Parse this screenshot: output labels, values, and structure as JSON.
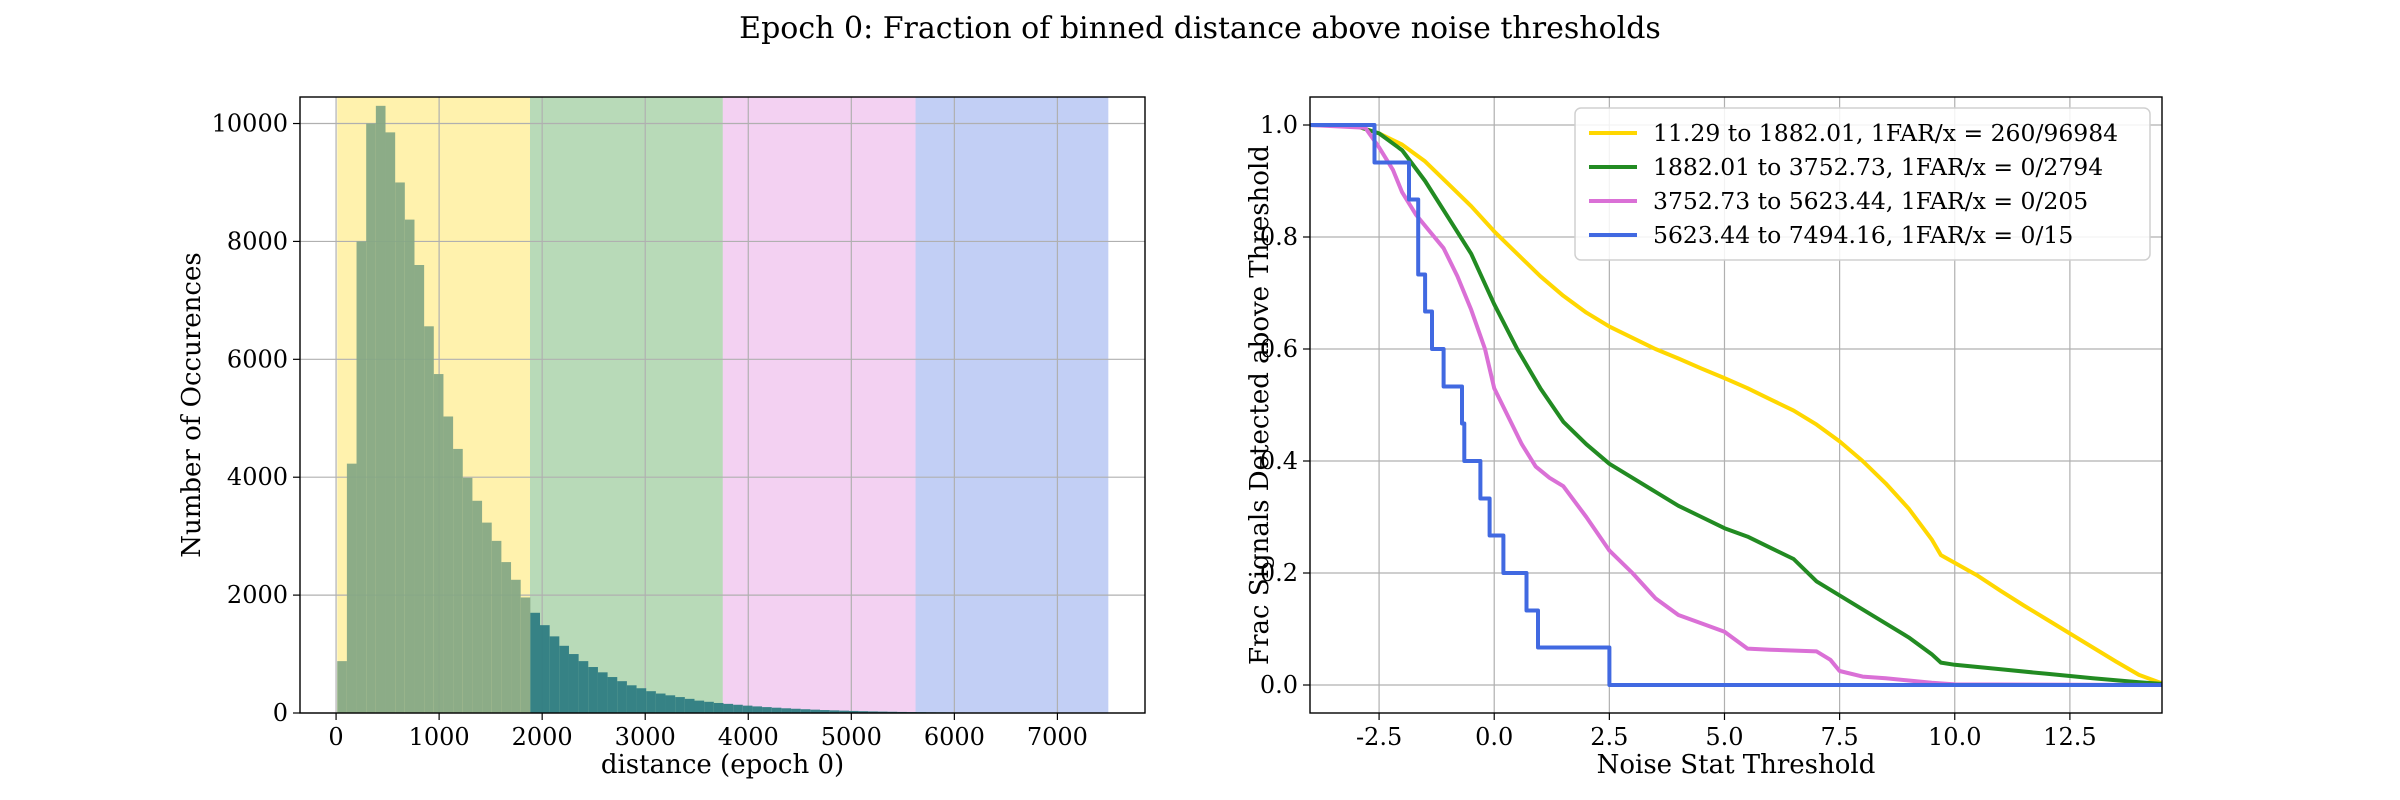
{
  "figure": {
    "title": "Epoch 0: Fraction of binned distance above noise thresholds"
  },
  "colors": {
    "bin1": "#ffd700",
    "bin2": "#228b22",
    "bin3": "#da70d6",
    "bin4": "#4169e1",
    "hist_overlap": "#86a885",
    "hist_tail": "#2e7d82"
  },
  "chart_data": [
    {
      "type": "bar",
      "subtype": "histogram",
      "title": "",
      "xlabel": "distance (epoch 0)",
      "ylabel": "Number of Occurences",
      "xlim": [
        -350,
        7850
      ],
      "ylim": [
        0,
        10450
      ],
      "xticks": [
        0,
        1000,
        2000,
        3000,
        4000,
        5000,
        6000,
        7000
      ],
      "yticks": [
        0,
        2000,
        4000,
        6000,
        8000,
        10000
      ],
      "grid": true,
      "bin_width": 93.7,
      "bin_start": 11.29,
      "values": [
        880,
        4230,
        8000,
        10000,
        10300,
        9850,
        9000,
        8370,
        7600,
        6560,
        5750,
        5030,
        4480,
        3990,
        3600,
        3230,
        2920,
        2560,
        2260,
        1960,
        1700,
        1490,
        1300,
        1140,
        1000,
        880,
        780,
        690,
        610,
        540,
        470,
        420,
        370,
        330,
        300,
        270,
        240,
        210,
        190,
        170,
        155,
        140,
        125,
        112,
        100,
        90,
        80,
        72,
        64,
        57,
        50,
        45,
        40,
        35,
        31,
        27,
        24,
        21,
        18,
        16,
        14,
        12,
        11,
        10,
        9,
        8,
        7,
        6,
        5,
        5,
        4,
        4,
        3,
        3,
        3,
        2,
        2,
        2,
        2,
        1
      ],
      "regions": [
        {
          "from": 11.29,
          "to": 1882.01,
          "color": "#ffd700"
        },
        {
          "from": 1882.01,
          "to": 3752.73,
          "color": "#228b22"
        },
        {
          "from": 3752.73,
          "to": 5623.44,
          "color": "#da70d6"
        },
        {
          "from": 5623.44,
          "to": 7494.16,
          "color": "#4169e1"
        }
      ]
    },
    {
      "type": "line",
      "title": "",
      "xlabel": "Noise Stat Threshold",
      "ylabel": "Frac Signals Detected above Threshold",
      "xlim": [
        -4.0,
        14.5
      ],
      "ylim": [
        -0.05,
        1.05
      ],
      "xticks": [
        -2.5,
        0.0,
        2.5,
        5.0,
        7.5,
        10.0,
        12.5
      ],
      "yticks": [
        0.0,
        0.2,
        0.4,
        0.6,
        0.8,
        1.0
      ],
      "grid": true,
      "legend_position": "top-right",
      "series": [
        {
          "name": "11.29 to 1882.01, 1FAR/x = 260/96984",
          "color": "#ffd700",
          "points": [
            [
              -4.0,
              1.0
            ],
            [
              -3.5,
              1.0
            ],
            [
              -3.0,
              0.998
            ],
            [
              -2.5,
              0.985
            ],
            [
              -2.0,
              0.965
            ],
            [
              -1.5,
              0.935
            ],
            [
              -1.0,
              0.895
            ],
            [
              -0.5,
              0.855
            ],
            [
              0.0,
              0.81
            ],
            [
              0.5,
              0.77
            ],
            [
              1.0,
              0.73
            ],
            [
              1.5,
              0.695
            ],
            [
              2.0,
              0.665
            ],
            [
              2.5,
              0.64
            ],
            [
              3.0,
              0.62
            ],
            [
              3.5,
              0.6
            ],
            [
              4.0,
              0.583
            ],
            [
              4.5,
              0.565
            ],
            [
              5.0,
              0.548
            ],
            [
              5.5,
              0.53
            ],
            [
              6.0,
              0.51
            ],
            [
              6.5,
              0.49
            ],
            [
              7.0,
              0.465
            ],
            [
              7.5,
              0.435
            ],
            [
              8.0,
              0.4
            ],
            [
              8.5,
              0.36
            ],
            [
              9.0,
              0.315
            ],
            [
              9.5,
              0.26
            ],
            [
              9.7,
              0.232
            ],
            [
              10.0,
              0.218
            ],
            [
              10.5,
              0.195
            ],
            [
              11.0,
              0.168
            ],
            [
              11.5,
              0.142
            ],
            [
              12.0,
              0.117
            ],
            [
              12.5,
              0.092
            ],
            [
              13.0,
              0.067
            ],
            [
              13.5,
              0.042
            ],
            [
              14.0,
              0.018
            ],
            [
              14.5,
              0.003
            ]
          ]
        },
        {
          "name": "1882.01 to 3752.73, 1FAR/x = 0/2794",
          "color": "#228b22",
          "points": [
            [
              -4.0,
              1.0
            ],
            [
              -3.0,
              0.998
            ],
            [
              -2.5,
              0.985
            ],
            [
              -2.0,
              0.955
            ],
            [
              -1.5,
              0.9
            ],
            [
              -1.0,
              0.835
            ],
            [
              -0.5,
              0.77
            ],
            [
              0.0,
              0.68
            ],
            [
              0.5,
              0.6
            ],
            [
              1.0,
              0.53
            ],
            [
              1.5,
              0.47
            ],
            [
              2.0,
              0.43
            ],
            [
              2.5,
              0.395
            ],
            [
              3.0,
              0.37
            ],
            [
              3.5,
              0.345
            ],
            [
              4.0,
              0.32
            ],
            [
              4.5,
              0.3
            ],
            [
              5.0,
              0.28
            ],
            [
              5.5,
              0.265
            ],
            [
              6.0,
              0.245
            ],
            [
              6.5,
              0.225
            ],
            [
              7.0,
              0.185
            ],
            [
              7.5,
              0.16
            ],
            [
              8.0,
              0.135
            ],
            [
              8.5,
              0.11
            ],
            [
              9.0,
              0.085
            ],
            [
              9.5,
              0.055
            ],
            [
              9.7,
              0.04
            ],
            [
              10.0,
              0.036
            ],
            [
              11.0,
              0.028
            ],
            [
              12.0,
              0.02
            ],
            [
              13.0,
              0.012
            ],
            [
              14.0,
              0.005
            ],
            [
              14.5,
              0.002
            ]
          ]
        },
        {
          "name": "3752.73 to 5623.44, 1FAR/x = 0/205",
          "color": "#da70d6",
          "points": [
            [
              -4.0,
              1.0
            ],
            [
              -2.8,
              0.995
            ],
            [
              -2.5,
              0.96
            ],
            [
              -2.2,
              0.92
            ],
            [
              -2.0,
              0.88
            ],
            [
              -1.7,
              0.84
            ],
            [
              -1.4,
              0.81
            ],
            [
              -1.1,
              0.78
            ],
            [
              -0.8,
              0.73
            ],
            [
              -0.5,
              0.67
            ],
            [
              -0.2,
              0.6
            ],
            [
              0.0,
              0.53
            ],
            [
              0.3,
              0.48
            ],
            [
              0.6,
              0.43
            ],
            [
              0.9,
              0.39
            ],
            [
              1.2,
              0.37
            ],
            [
              1.5,
              0.355
            ],
            [
              2.0,
              0.3
            ],
            [
              2.5,
              0.24
            ],
            [
              3.0,
              0.2
            ],
            [
              3.5,
              0.155
            ],
            [
              4.0,
              0.125
            ],
            [
              4.5,
              0.11
            ],
            [
              5.0,
              0.095
            ],
            [
              5.5,
              0.065
            ],
            [
              6.0,
              0.063
            ],
            [
              7.0,
              0.06
            ],
            [
              7.3,
              0.045
            ],
            [
              7.5,
              0.025
            ],
            [
              8.0,
              0.015
            ],
            [
              8.5,
              0.012
            ],
            [
              9.0,
              0.008
            ],
            [
              9.5,
              0.004
            ],
            [
              10.0,
              0.001
            ],
            [
              14.5,
              0.0
            ]
          ]
        },
        {
          "name": "5623.44 to 7494.16, 1FAR/x = 0/15",
          "color": "#4169e1",
          "step": true,
          "points": [
            [
              -4.0,
              1.0
            ],
            [
              -2.6,
              1.0
            ],
            [
              -2.6,
              0.933
            ],
            [
              -1.85,
              0.933
            ],
            [
              -1.85,
              0.867
            ],
            [
              -1.65,
              0.867
            ],
            [
              -1.65,
              0.733
            ],
            [
              -1.5,
              0.733
            ],
            [
              -1.5,
              0.667
            ],
            [
              -1.35,
              0.667
            ],
            [
              -1.35,
              0.6
            ],
            [
              -1.1,
              0.6
            ],
            [
              -1.1,
              0.533
            ],
            [
              -0.7,
              0.533
            ],
            [
              -0.7,
              0.467
            ],
            [
              -0.65,
              0.467
            ],
            [
              -0.65,
              0.4
            ],
            [
              -0.3,
              0.4
            ],
            [
              -0.3,
              0.333
            ],
            [
              -0.1,
              0.333
            ],
            [
              -0.1,
              0.267
            ],
            [
              0.2,
              0.267
            ],
            [
              0.2,
              0.2
            ],
            [
              0.7,
              0.2
            ],
            [
              0.7,
              0.133
            ],
            [
              0.95,
              0.133
            ],
            [
              0.95,
              0.067
            ],
            [
              2.5,
              0.067
            ],
            [
              2.5,
              0.0
            ],
            [
              14.5,
              0.0
            ]
          ]
        }
      ]
    }
  ]
}
